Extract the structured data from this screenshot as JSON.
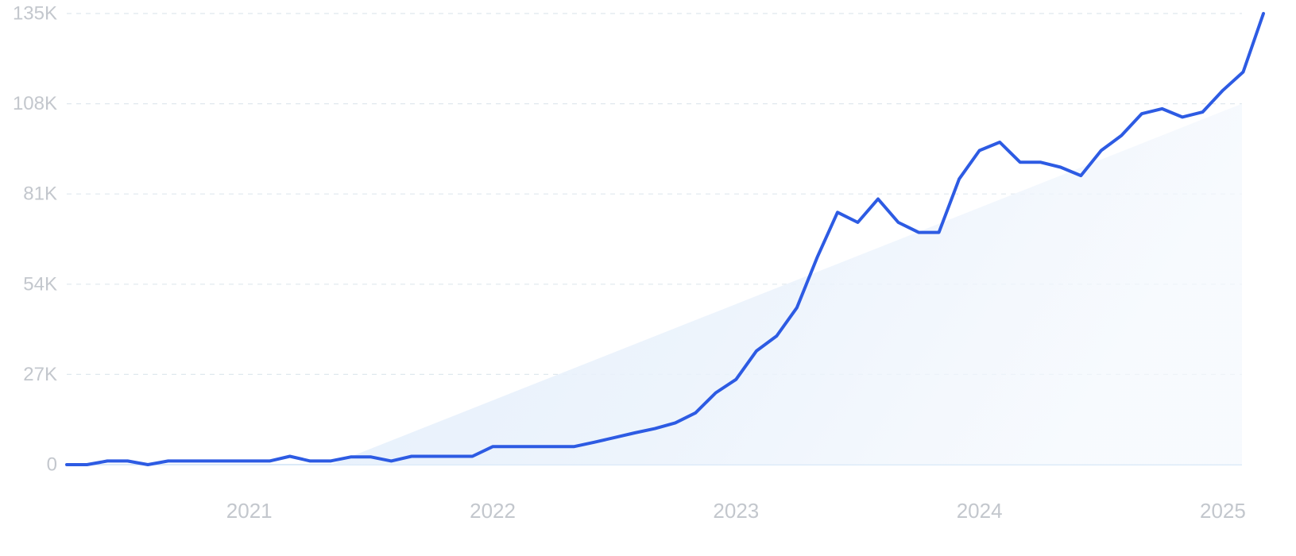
{
  "chart_data": {
    "type": "line",
    "title": "",
    "xlabel": "",
    "ylabel": "",
    "ylim": [
      0,
      135000
    ],
    "xlim": [
      "2020-04",
      "2025-03"
    ],
    "grid": true,
    "legend": "none",
    "y_ticks": [
      {
        "value": 0,
        "label": "0"
      },
      {
        "value": 27000,
        "label": "27K"
      },
      {
        "value": 54000,
        "label": "54K"
      },
      {
        "value": 81000,
        "label": "81K"
      },
      {
        "value": 108000,
        "label": "108K"
      },
      {
        "value": 135000,
        "label": "135K"
      }
    ],
    "x_ticks": [
      {
        "value": "2021-01",
        "label": "2021"
      },
      {
        "value": "2022-01",
        "label": "2022"
      },
      {
        "value": "2023-01",
        "label": "2023"
      },
      {
        "value": "2024-01",
        "label": "2024"
      },
      {
        "value": "2025-01",
        "label": "2025"
      }
    ],
    "series": [
      {
        "color": "#2d5be3",
        "points": [
          [
            "2020-04",
            0
          ],
          [
            "2020-05",
            0
          ],
          [
            "2020-06",
            1100
          ],
          [
            "2020-07",
            1100
          ],
          [
            "2020-08",
            0
          ],
          [
            "2020-09",
            1100
          ],
          [
            "2020-10",
            1100
          ],
          [
            "2020-11",
            1100
          ],
          [
            "2020-12",
            1100
          ],
          [
            "2021-01",
            1100
          ],
          [
            "2021-02",
            1100
          ],
          [
            "2021-03",
            2500
          ],
          [
            "2021-04",
            1100
          ],
          [
            "2021-05",
            1100
          ],
          [
            "2021-06",
            2300
          ],
          [
            "2021-07",
            2300
          ],
          [
            "2021-08",
            1100
          ],
          [
            "2021-09",
            2500
          ],
          [
            "2021-10",
            2500
          ],
          [
            "2021-11",
            2500
          ],
          [
            "2021-12",
            2500
          ],
          [
            "2022-01",
            5400
          ],
          [
            "2022-02",
            5400
          ],
          [
            "2022-03",
            5400
          ],
          [
            "2022-04",
            5400
          ],
          [
            "2022-05",
            5400
          ],
          [
            "2022-06",
            6700
          ],
          [
            "2022-07",
            8100
          ],
          [
            "2022-08",
            9500
          ],
          [
            "2022-09",
            10800
          ],
          [
            "2022-10",
            12500
          ],
          [
            "2022-11",
            15500
          ],
          [
            "2022-12",
            21500
          ],
          [
            "2023-01",
            25500
          ],
          [
            "2023-02",
            34000
          ],
          [
            "2023-03",
            38500
          ],
          [
            "2023-04",
            47000
          ],
          [
            "2023-05",
            62000
          ],
          [
            "2023-06",
            75500
          ],
          [
            "2023-07",
            72500
          ],
          [
            "2023-08",
            79500
          ],
          [
            "2023-09",
            72500
          ],
          [
            "2023-10",
            69500
          ],
          [
            "2023-11",
            69500
          ],
          [
            "2023-12",
            85500
          ],
          [
            "2024-01",
            94000
          ],
          [
            "2024-02",
            96500
          ],
          [
            "2024-03",
            90500
          ],
          [
            "2024-04",
            90500
          ],
          [
            "2024-05",
            89000
          ],
          [
            "2024-06",
            86500
          ],
          [
            "2024-07",
            94000
          ],
          [
            "2024-08",
            98500
          ],
          [
            "2024-09",
            105000
          ],
          [
            "2024-10",
            106500
          ],
          [
            "2024-11",
            104000
          ],
          [
            "2024-12",
            105500
          ],
          [
            "2025-01",
            112000
          ],
          [
            "2025-02",
            117500
          ],
          [
            "2025-03",
            135000
          ]
        ]
      }
    ],
    "trend": {
      "color": "#e4eefb",
      "start": [
        "2021-05",
        0
      ],
      "end": [
        "2025-03",
        108000
      ]
    }
  }
}
